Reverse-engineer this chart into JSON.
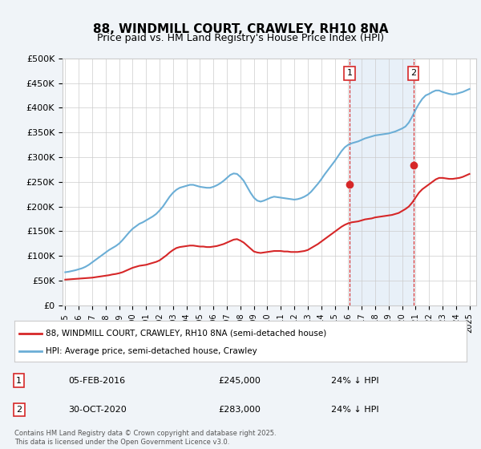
{
  "title": "88, WINDMILL COURT, CRAWLEY, RH10 8NA",
  "subtitle": "Price paid vs. HM Land Registry's House Price Index (HPI)",
  "ylabel": "",
  "ylim": [
    0,
    500000
  ],
  "yticks": [
    0,
    50000,
    100000,
    150000,
    200000,
    250000,
    300000,
    350000,
    400000,
    450000,
    500000
  ],
  "ytick_labels": [
    "£0",
    "£50K",
    "£100K",
    "£150K",
    "£200K",
    "£250K",
    "£300K",
    "£350K",
    "£400K",
    "£450K",
    "£500K"
  ],
  "hpi_color": "#6baed6",
  "price_color": "#d62728",
  "marker_color": "#d62728",
  "transaction1": {
    "date_num": 2016.09,
    "price": 245000,
    "label": "1",
    "date_str": "05-FEB-2016",
    "pct": "24% ↓ HPI"
  },
  "transaction2": {
    "date_num": 2020.83,
    "price": 283000,
    "label": "2",
    "date_str": "30-OCT-2020",
    "pct": "24% ↓ HPI"
  },
  "legend_line1": "88, WINDMILL COURT, CRAWLEY, RH10 8NA (semi-detached house)",
  "legend_line2": "HPI: Average price, semi-detached house, Crawley",
  "footnote": "Contains HM Land Registry data © Crown copyright and database right 2025.\nThis data is licensed under the Open Government Licence v3.0.",
  "background_color": "#f0f4f8",
  "plot_bg_color": "#ffffff",
  "hpi_years": [
    1995,
    1995.25,
    1995.5,
    1995.75,
    1996,
    1996.25,
    1996.5,
    1996.75,
    1997,
    1997.25,
    1997.5,
    1997.75,
    1998,
    1998.25,
    1998.5,
    1998.75,
    1999,
    1999.25,
    1999.5,
    1999.75,
    2000,
    2000.25,
    2000.5,
    2000.75,
    2001,
    2001.25,
    2001.5,
    2001.75,
    2002,
    2002.25,
    2002.5,
    2002.75,
    2003,
    2003.25,
    2003.5,
    2003.75,
    2004,
    2004.25,
    2004.5,
    2004.75,
    2005,
    2005.25,
    2005.5,
    2005.75,
    2006,
    2006.25,
    2006.5,
    2006.75,
    2007,
    2007.25,
    2007.5,
    2007.75,
    2008,
    2008.25,
    2008.5,
    2008.75,
    2009,
    2009.25,
    2009.5,
    2009.75,
    2010,
    2010.25,
    2010.5,
    2010.75,
    2011,
    2011.25,
    2011.5,
    2011.75,
    2012,
    2012.25,
    2012.5,
    2012.75,
    2013,
    2013.25,
    2013.5,
    2013.75,
    2014,
    2014.25,
    2014.5,
    2014.75,
    2015,
    2015.25,
    2015.5,
    2015.75,
    2016,
    2016.25,
    2016.5,
    2016.75,
    2017,
    2017.25,
    2017.5,
    2017.75,
    2018,
    2018.25,
    2018.5,
    2018.75,
    2019,
    2019.25,
    2019.5,
    2019.75,
    2020,
    2020.25,
    2020.5,
    2020.75,
    2021,
    2021.25,
    2021.5,
    2021.75,
    2022,
    2022.25,
    2022.5,
    2022.75,
    2023,
    2023.25,
    2023.5,
    2023.75,
    2024,
    2024.25,
    2024.5,
    2024.75,
    2025
  ],
  "hpi_values": [
    67000,
    68000,
    69500,
    71000,
    73000,
    75000,
    78000,
    82000,
    87000,
    92000,
    97000,
    102000,
    107000,
    112000,
    116000,
    120000,
    125000,
    132000,
    140000,
    148000,
    155000,
    160000,
    165000,
    168000,
    172000,
    176000,
    180000,
    185000,
    192000,
    200000,
    210000,
    220000,
    228000,
    234000,
    238000,
    240000,
    242000,
    244000,
    244000,
    242000,
    240000,
    239000,
    238000,
    238000,
    240000,
    243000,
    247000,
    252000,
    258000,
    264000,
    267000,
    266000,
    260000,
    252000,
    240000,
    228000,
    218000,
    212000,
    210000,
    212000,
    215000,
    218000,
    220000,
    219000,
    218000,
    217000,
    216000,
    215000,
    214000,
    215000,
    217000,
    220000,
    224000,
    230000,
    238000,
    246000,
    255000,
    265000,
    274000,
    283000,
    292000,
    302000,
    312000,
    320000,
    325000,
    328000,
    330000,
    332000,
    335000,
    338000,
    340000,
    342000,
    344000,
    345000,
    346000,
    347000,
    348000,
    350000,
    352000,
    355000,
    358000,
    362000,
    370000,
    382000,
    396000,
    408000,
    418000,
    425000,
    428000,
    432000,
    435000,
    435000,
    432000,
    430000,
    428000,
    427000,
    428000,
    430000,
    432000,
    435000,
    438000
  ],
  "price_years": [
    1995,
    1995.25,
    1995.5,
    1995.75,
    1996,
    1996.25,
    1996.5,
    1996.75,
    1997,
    1997.25,
    1997.5,
    1997.75,
    1998,
    1998.25,
    1998.5,
    1998.75,
    1999,
    1999.25,
    1999.5,
    1999.75,
    2000,
    2000.25,
    2000.5,
    2000.75,
    2001,
    2001.25,
    2001.5,
    2001.75,
    2002,
    2002.25,
    2002.5,
    2002.75,
    2003,
    2003.25,
    2003.5,
    2003.75,
    2004,
    2004.25,
    2004.5,
    2004.75,
    2005,
    2005.25,
    2005.5,
    2005.75,
    2006,
    2006.25,
    2006.5,
    2006.75,
    2007,
    2007.25,
    2007.5,
    2007.75,
    2008,
    2008.25,
    2008.5,
    2008.75,
    2009,
    2009.25,
    2009.5,
    2009.75,
    2010,
    2010.25,
    2010.5,
    2010.75,
    2011,
    2011.25,
    2011.5,
    2011.75,
    2012,
    2012.25,
    2012.5,
    2012.75,
    2013,
    2013.25,
    2013.5,
    2013.75,
    2014,
    2014.25,
    2014.5,
    2014.75,
    2015,
    2015.25,
    2015.5,
    2015.75,
    2016,
    2016.25,
    2016.5,
    2016.75,
    2017,
    2017.25,
    2017.5,
    2017.75,
    2018,
    2018.25,
    2018.5,
    2018.75,
    2019,
    2019.25,
    2019.5,
    2019.75,
    2020,
    2020.25,
    2020.5,
    2020.75,
    2021,
    2021.25,
    2021.5,
    2021.75,
    2022,
    2022.25,
    2022.5,
    2022.75,
    2023,
    2023.25,
    2023.5,
    2023.75,
    2024,
    2024.25,
    2024.5,
    2024.75,
    2025
  ],
  "price_values": [
    52000,
    52500,
    53000,
    53500,
    54000,
    54500,
    55000,
    55500,
    56000,
    57000,
    58000,
    59000,
    60000,
    61000,
    62500,
    63500,
    65000,
    67000,
    70000,
    73000,
    76000,
    78000,
    80000,
    81000,
    82000,
    84000,
    86000,
    88000,
    91000,
    96000,
    101000,
    107000,
    112000,
    116000,
    118000,
    119000,
    120000,
    121000,
    121000,
    120000,
    119000,
    119000,
    118000,
    118000,
    119000,
    120000,
    122000,
    124000,
    127000,
    130000,
    133000,
    134000,
    131000,
    127000,
    121000,
    115000,
    109000,
    107000,
    106000,
    107000,
    108000,
    109000,
    110000,
    110000,
    110000,
    109000,
    109000,
    108000,
    108000,
    108000,
    109000,
    110000,
    112000,
    116000,
    120000,
    124000,
    129000,
    134000,
    139000,
    144000,
    149000,
    154000,
    159000,
    163000,
    166000,
    168000,
    169000,
    170000,
    172000,
    174000,
    175000,
    176000,
    178000,
    179000,
    180000,
    181000,
    182000,
    183000,
    185000,
    187000,
    191000,
    195000,
    200000,
    208000,
    218000,
    228000,
    235000,
    240000,
    245000,
    250000,
    255000,
    258000,
    258000,
    257000,
    256000,
    256000,
    257000,
    258000,
    260000,
    263000,
    266000
  ]
}
